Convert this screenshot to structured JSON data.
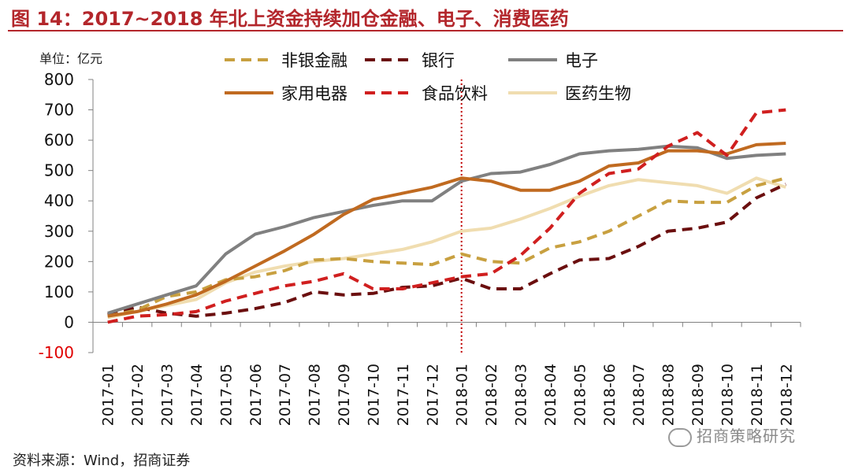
{
  "title": "图 14：2017~2018 年北上资金持续加仓金融、电子、消费医药",
  "source": "资料来源：Wind，招商证券",
  "watermark": "招商策略研究",
  "colors": {
    "title": "#b3262b",
    "negative_tick": "#e00000",
    "marker_line": "#c00000",
    "axis": "#808080"
  },
  "chart_data": {
    "type": "line",
    "unit_label": "单位：亿元",
    "x": [
      "2017-01",
      "2017-02",
      "2017-03",
      "2017-04",
      "2017-05",
      "2017-06",
      "2017-07",
      "2017-08",
      "2017-09",
      "2017-10",
      "2017-11",
      "2017-12",
      "2018-01",
      "2018-02",
      "2018-03",
      "2018-04",
      "2018-05",
      "2018-06",
      "2018-07",
      "2018-08",
      "2018-09",
      "2018-10",
      "2018-11",
      "2018-12"
    ],
    "ylim": [
      -100,
      800
    ],
    "yticks": [
      "800",
      "700",
      "600",
      "500",
      "400",
      "300",
      "200",
      "100",
      "0",
      "-100"
    ],
    "ytick_values": [
      800,
      700,
      600,
      500,
      400,
      300,
      200,
      100,
      0,
      -100
    ],
    "grid": false,
    "legend_position": "top",
    "vertical_marker": "2018-01",
    "series": [
      {
        "name": "非银金融",
        "color": "#c8a040",
        "dash": true,
        "values": [
          20,
          40,
          85,
          100,
          140,
          150,
          170,
          205,
          210,
          200,
          195,
          190,
          225,
          200,
          195,
          245,
          265,
          300,
          350,
          400,
          395,
          395,
          450,
          475
        ]
      },
      {
        "name": "银行",
        "color": "#6b0f0f",
        "dash": true,
        "values": [
          25,
          50,
          30,
          20,
          30,
          45,
          65,
          100,
          90,
          95,
          115,
          120,
          145,
          110,
          110,
          160,
          205,
          210,
          250,
          300,
          310,
          330,
          410,
          455
        ]
      },
      {
        "name": "电子",
        "color": "#808080",
        "dash": false,
        "values": [
          30,
          60,
          90,
          120,
          225,
          290,
          315,
          345,
          365,
          385,
          400,
          400,
          465,
          490,
          495,
          520,
          555,
          565,
          570,
          580,
          575,
          540,
          550,
          555
        ]
      },
      {
        "name": "家用电器",
        "color": "#c06a20",
        "dash": false,
        "values": [
          20,
          35,
          60,
          90,
          135,
          185,
          235,
          290,
          355,
          405,
          425,
          445,
          475,
          465,
          435,
          435,
          465,
          515,
          525,
          565,
          565,
          555,
          585,
          590
        ]
      },
      {
        "name": "食品饮料",
        "color": "#d01f1f",
        "dash": true,
        "values": [
          0,
          20,
          25,
          35,
          70,
          95,
          120,
          135,
          160,
          110,
          110,
          130,
          150,
          160,
          220,
          310,
          425,
          490,
          505,
          580,
          625,
          550,
          690,
          700
        ]
      },
      {
        "name": "医药生物",
        "color": "#f0ddb0",
        "dash": false,
        "values": [
          15,
          35,
          55,
          75,
          130,
          165,
          185,
          200,
          210,
          225,
          240,
          265,
          300,
          310,
          340,
          375,
          415,
          450,
          470,
          460,
          450,
          425,
          475,
          445
        ]
      }
    ]
  }
}
